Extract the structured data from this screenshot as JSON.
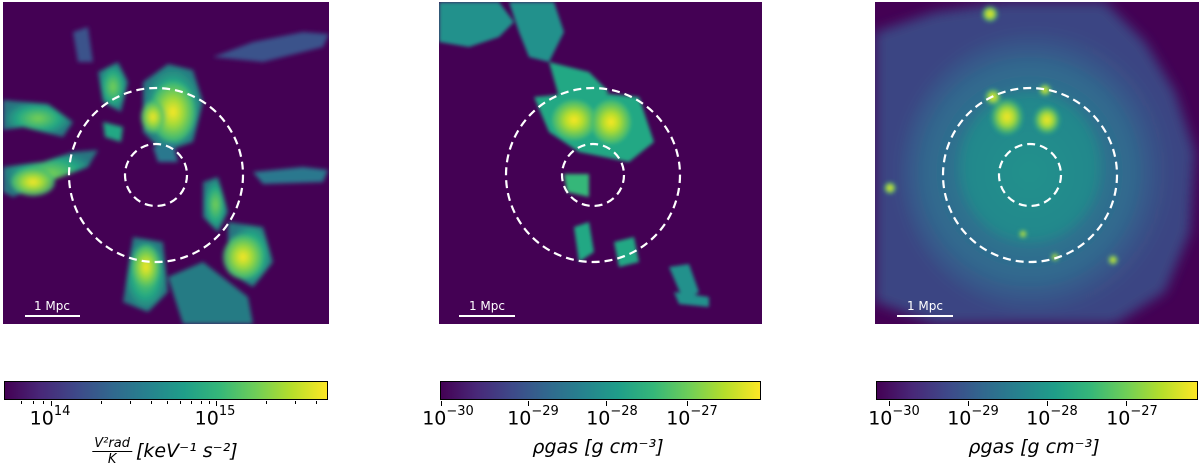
{
  "panels": [
    {
      "scalebar_label": "1 Mpc"
    },
    {
      "scalebar_label": "1 Mpc"
    },
    {
      "scalebar_label": "1 Mpc"
    }
  ],
  "colorbars": [
    {
      "ticks": [
        {
          "base": "10",
          "exp": "14"
        },
        {
          "base": "10",
          "exp": "15"
        }
      ],
      "label_num": "V²rad",
      "label_den": "K",
      "label_unit": "[keV⁻¹ s⁻²]"
    },
    {
      "ticks": [
        {
          "base": "10",
          "exp": "−30"
        },
        {
          "base": "10",
          "exp": "−29"
        },
        {
          "base": "10",
          "exp": "−28"
        },
        {
          "base": "10",
          "exp": "−27"
        }
      ],
      "label": "ρgas [g cm⁻³]"
    },
    {
      "ticks": [
        {
          "base": "10",
          "exp": "−30"
        },
        {
          "base": "10",
          "exp": "−29"
        },
        {
          "base": "10",
          "exp": "−28"
        },
        {
          "base": "10",
          "exp": "−27"
        }
      ],
      "label": "ρgas [g cm⁻³]"
    }
  ],
  "colormap": "viridis",
  "colors": {
    "background": "#440154",
    "circle": "#ffffff"
  }
}
